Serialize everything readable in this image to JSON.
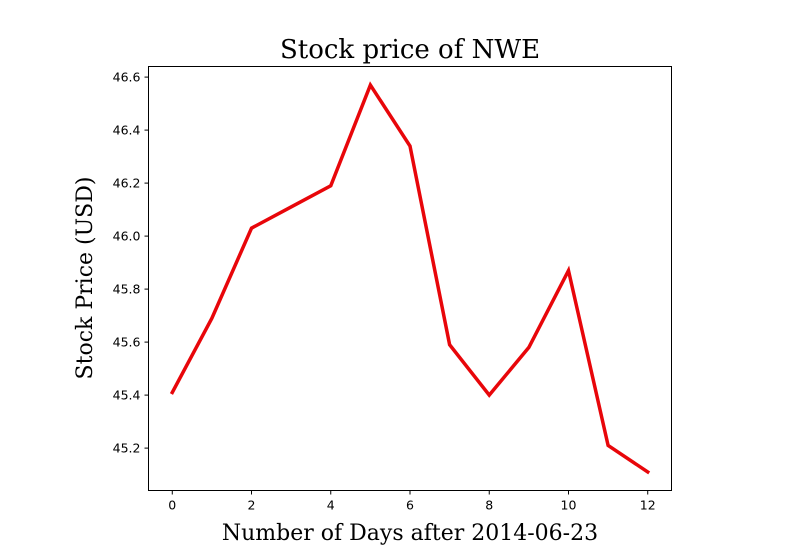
{
  "chart_data": {
    "type": "line",
    "title": "Stock price of NWE",
    "xlabel": "Number of Days after 2014-06-23",
    "ylabel": "Stock Price (USD)",
    "x": [
      0,
      1,
      2,
      3,
      4,
      5,
      6,
      7,
      8,
      9,
      10,
      11,
      12
    ],
    "series": [
      {
        "values": [
          45.41,
          45.69,
          46.03,
          46.11,
          46.19,
          46.57,
          46.34,
          45.59,
          45.4,
          45.58,
          45.87,
          45.21,
          45.11
        ],
        "color": "#e8060a"
      }
    ],
    "xlim": [
      -0.6,
      12.6
    ],
    "ylim": [
      45.04,
      46.64
    ],
    "xticks": [
      0,
      2,
      4,
      6,
      8,
      10,
      12
    ],
    "xtick_labels": [
      "0",
      "2",
      "4",
      "6",
      "8",
      "10",
      "12"
    ],
    "yticks": [
      45.2,
      45.4,
      45.6,
      45.8,
      46.0,
      46.2,
      46.4,
      46.6
    ],
    "ytick_labels": [
      "45.2",
      "45.4",
      "45.6",
      "45.8",
      "46.0",
      "46.2",
      "46.4",
      "46.6"
    ],
    "grid": false,
    "legend": "none"
  }
}
